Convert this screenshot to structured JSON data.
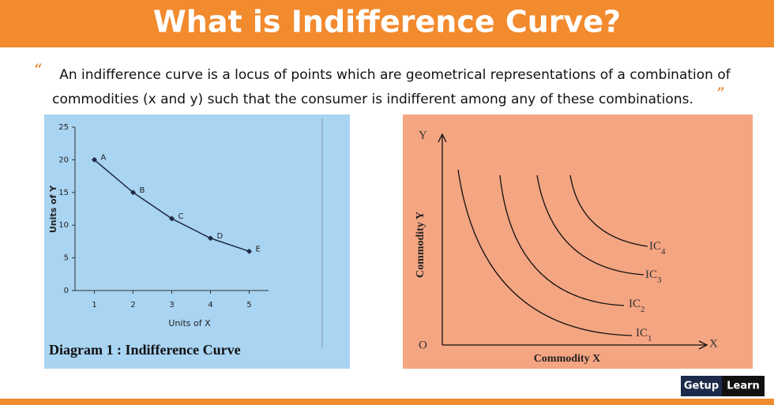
{
  "header": {
    "title": "What is Indifference Curve?"
  },
  "quote": {
    "open_mark": "“",
    "close_mark": "”",
    "lines": [
      "An indifference curve is a locus of points which are geometrical representations of a combination of",
      "commodities (x and y) such that the consumer is indifferent among any of these combinations."
    ]
  },
  "chart_data": {
    "type": "line",
    "x": [
      1,
      2,
      3,
      4,
      5
    ],
    "values": [
      20,
      15,
      11,
      8,
      6
    ],
    "point_labels": [
      "A",
      "B",
      "C",
      "D",
      "E"
    ],
    "color": "#1f2a44",
    "xlim": [
      0.5,
      5.5
    ],
    "ylim": [
      0,
      25
    ],
    "xticks": [
      1,
      2,
      3,
      4,
      5
    ],
    "yticks": [
      0,
      5,
      10,
      15,
      20,
      25
    ],
    "xlabel": "Units of X",
    "ylabel": "Units of Y",
    "caption": "Diagram 1 : Indifference Curve"
  },
  "diagram": {
    "y_axis": "Y",
    "x_axis": "X",
    "origin": "O",
    "ylabel": "Commodity Y",
    "xlabel": "Commodity X",
    "curves": [
      {
        "label": "IC",
        "sub": "4"
      },
      {
        "label": "IC",
        "sub": "3"
      },
      {
        "label": "IC",
        "sub": "2"
      },
      {
        "label": "IC",
        "sub": "1"
      }
    ]
  },
  "brand": {
    "left": "Getup",
    "right": "Learn"
  }
}
